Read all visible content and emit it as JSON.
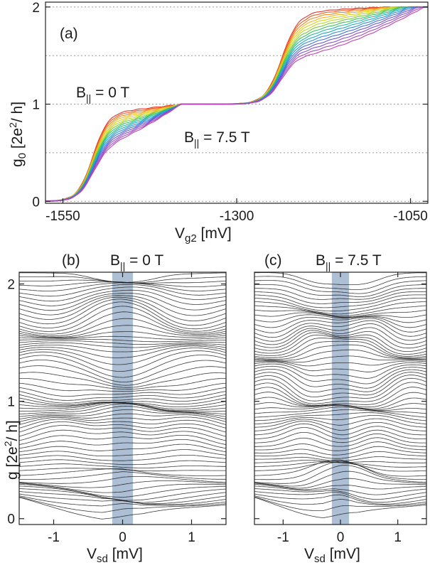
{
  "chart_data": [
    {
      "panel": "a",
      "type": "line",
      "panel_label": "(a)",
      "xlabel_main": "V",
      "xlabel_sub": "g2",
      "xlabel_unit": "[mV]",
      "ylabel_main": "g",
      "ylabel_sub": "0",
      "ylabel_unit_pre": "[2e",
      "ylabel_unit_sup": "2",
      "ylabel_unit_post": "/ h]",
      "xlim": [
        -1575,
        -1025
      ],
      "ylim": [
        -0.02,
        2.05
      ],
      "xticks": [
        -1550,
        -1300,
        -1050
      ],
      "xtick_labels": [
        "-1550",
        "-1300",
        "-1050"
      ],
      "yticks": [
        0,
        1,
        2
      ],
      "ytick_labels": [
        "0",
        "1",
        "2"
      ],
      "dotted_gridlines_y": [
        0,
        0.5,
        1,
        1.5,
        2
      ],
      "n_traces": 16,
      "field_range_T": [
        0,
        7.5
      ],
      "colormap": [
        "#e0352b",
        "#f07a1f",
        "#f2c81b",
        "#b6d82a",
        "#46c04a",
        "#1bb9b0",
        "#2a8fdc",
        "#5a5ad6",
        "#9a4fc9",
        "#c042b5"
      ],
      "annotation_low": {
        "main": "B",
        "sub": "||",
        "text": " = 0 T"
      },
      "annotation_high": {
        "main": "B",
        "sub": "||",
        "text": " = 7.5 T"
      },
      "series_endpoints": {
        "plateau_1_end_g0": [
          0.92,
          0.58
        ],
        "plateau_2_start_g0": [
          1.95,
          1.52
        ]
      }
    },
    {
      "panel": "b",
      "type": "line",
      "panel_label": "(b)",
      "title_main": "B",
      "title_sub": "||",
      "title_text": " = 0 T",
      "xlabel_main": "V",
      "xlabel_sub": "sd",
      "xlabel_unit": "[mV]",
      "ylabel_main": "g",
      "ylabel_unit_pre": "[2e",
      "ylabel_unit_sup": "2",
      "ylabel_unit_post": "/ h]",
      "xlim": [
        -1.5,
        1.5
      ],
      "ylim": [
        -0.05,
        2.1
      ],
      "xticks": [
        -1,
        0,
        1
      ],
      "xtick_labels": [
        "-1",
        "0",
        "1"
      ],
      "yticks": [
        0,
        1,
        2
      ],
      "ytick_labels": [
        "0",
        "1",
        "2"
      ],
      "shaded_band_x": [
        -0.15,
        0.15
      ],
      "n_traces": 70,
      "bunching_points": [
        {
          "vsd": 0.0,
          "g": 1.0
        },
        {
          "vsd": 0.0,
          "g": 2.0
        },
        {
          "vsd": -0.9,
          "g": 0.92
        },
        {
          "vsd": 0.9,
          "g": 0.92
        },
        {
          "vsd": -1.05,
          "g": 1.52
        },
        {
          "vsd": 1.05,
          "g": 1.52
        }
      ]
    },
    {
      "panel": "c",
      "type": "line",
      "panel_label": "(c)",
      "title_main": "B",
      "title_sub": "||",
      "title_text": " = 7.5 T",
      "xlabel_main": "V",
      "xlabel_sub": "sd",
      "xlabel_unit": "[mV]",
      "xlim": [
        -1.5,
        1.5
      ],
      "ylim": [
        -0.05,
        2.1
      ],
      "xticks": [
        -1,
        0,
        1
      ],
      "xtick_labels": [
        "-1",
        "0",
        "1"
      ],
      "shaded_band_x": [
        -0.15,
        0.15
      ],
      "n_traces": 70,
      "bunching_points": [
        {
          "vsd": 0.0,
          "g": 0.5
        },
        {
          "vsd": 0.0,
          "g": 1.0
        },
        {
          "vsd": 0.0,
          "g": 1.5
        },
        {
          "vsd": -0.5,
          "g": 0.92
        },
        {
          "vsd": 0.5,
          "g": 0.92
        },
        {
          "vsd": -0.35,
          "g": 1.75
        },
        {
          "vsd": 0.35,
          "g": 1.75
        },
        {
          "vsd": -1.15,
          "g": 1.35
        },
        {
          "vsd": 1.15,
          "g": 1.35
        }
      ]
    }
  ]
}
